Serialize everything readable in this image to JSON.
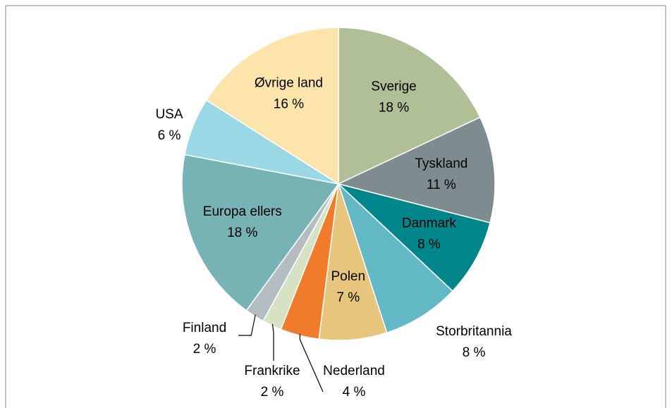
{
  "chart_data": {
    "type": "pie",
    "categories": [
      "Sverige",
      "Tyskland",
      "Danmark",
      "Storbritannia",
      "Polen",
      "Nederland",
      "Frankrike",
      "Finland",
      "Europa ellers",
      "USA",
      "Øvrige land"
    ],
    "values": [
      18,
      11,
      8,
      8,
      7,
      4,
      2,
      2,
      18,
      6,
      16
    ],
    "value_labels": [
      "18 %",
      "11 %",
      "8 %",
      "8 %",
      "7 %",
      "4 %",
      "2 %",
      "2 %",
      "18 %",
      "6 %",
      "16 %"
    ],
    "colors": [
      "#b1bf97",
      "#7e8c90",
      "#00858a",
      "#63b8c6",
      "#e8c57c",
      "#f07b2a",
      "#d7e1c3",
      "#b4bdc1",
      "#77b2b5",
      "#9ad8e5",
      "#fde4aa"
    ]
  }
}
